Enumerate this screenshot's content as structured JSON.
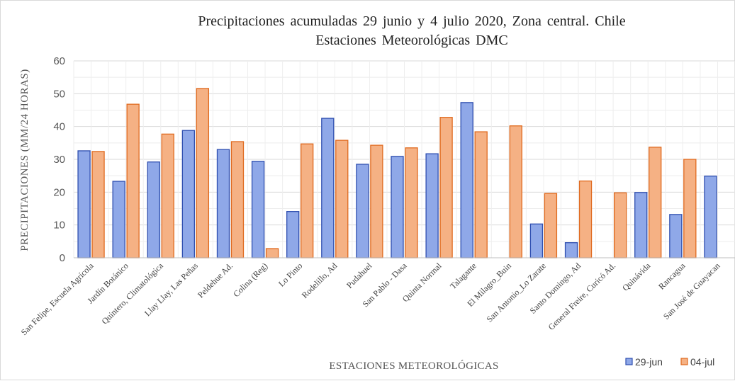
{
  "chart_data": {
    "type": "bar",
    "title": "Precipitaciones  acumuladas  29 junio y 4 julio 2020, Zona central.  Chile",
    "subtitle": "Estaciones  Meteorológicas  DMC",
    "xlabel": "ESTACIONES METEOROLÓGICAS",
    "ylabel": "PRECIPITACIONES (MM/24 HORAS)",
    "ylim": [
      0,
      60
    ],
    "yticks": [
      "0",
      "10",
      "20",
      "30",
      "40",
      "50",
      "60"
    ],
    "grid": true,
    "legend_position": "bottom-right",
    "categories": [
      "San Felipe, Escuela Agrícola",
      "Jardín Botánico",
      "Quintero, Climatológica",
      "Llay Llay, Las Peñas",
      "Peldehue Ad.",
      "Colina (Reg)",
      "Lo Pinto",
      "Rodelillo, Ad",
      "Pudahuel",
      "San Pablo - Dasa",
      "Quinta Normal",
      "Talagante",
      "El Milagro_Buin",
      "San Antonio_Lo Zarate",
      "Santo Domingo, Ad",
      "General Freire, Curicó Ad.",
      "Quinávida",
      "Rancagua",
      "San José de Guayacan"
    ],
    "series": [
      {
        "name": "29-jun",
        "color": "#8fa8e8",
        "stroke": "#2f4fb0",
        "values": [
          32.6,
          23.3,
          29.2,
          38.8,
          33.0,
          29.4,
          14.1,
          42.5,
          28.5,
          30.9,
          31.7,
          47.3,
          null,
          10.3,
          4.6,
          null,
          19.9,
          13.2,
          24.9
        ]
      },
      {
        "name": "04-jul",
        "color": "#f5b184",
        "stroke": "#e06a1f",
        "values": [
          32.4,
          46.8,
          37.7,
          51.6,
          35.4,
          2.8,
          34.7,
          35.8,
          34.3,
          33.5,
          42.8,
          38.4,
          40.2,
          19.6,
          23.4,
          19.8,
          33.7,
          30.0,
          null
        ]
      }
    ]
  }
}
